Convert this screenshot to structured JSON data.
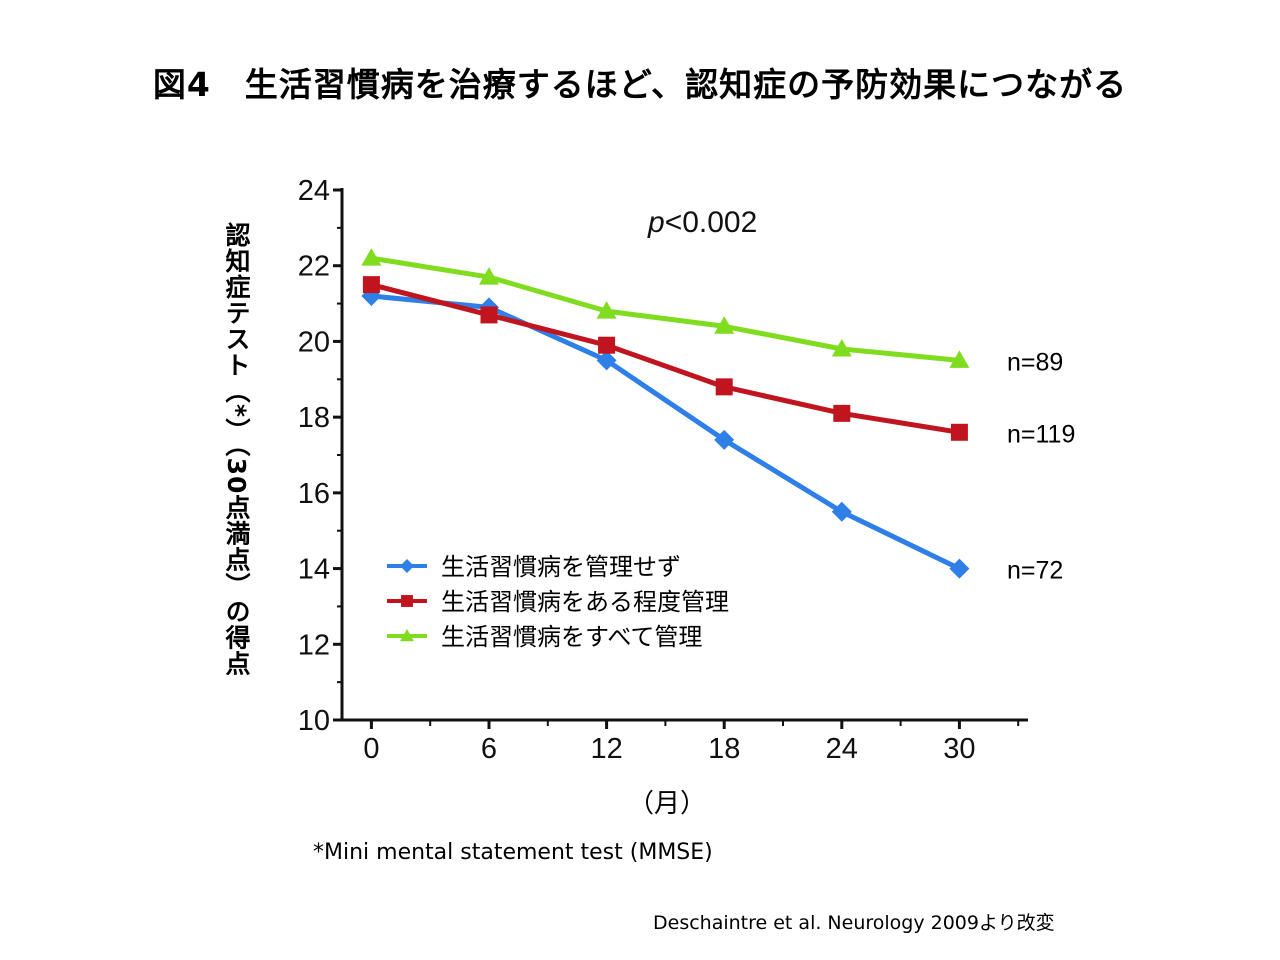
{
  "title": "図4　生活習慣病を治療するほど、認知症の予防効果につながる",
  "footnote": "*Mini mental statement test (MMSE)",
  "source": "Deschaintre et al. Neurology 2009より改変",
  "chart_data": {
    "type": "line",
    "title": "",
    "xlabel": "（月）",
    "ylabel": "認知症テスト（*）（30点満点）の得点",
    "x": [
      0,
      6,
      12,
      18,
      24,
      30
    ],
    "x_tick_labels": [
      "0",
      "6",
      "12",
      "18",
      "24",
      "30"
    ],
    "y_tick_labels": [
      "10",
      "12",
      "14",
      "16",
      "18",
      "20",
      "22",
      "24"
    ],
    "xlim": [
      -1.5,
      33.5
    ],
    "ylim": [
      10,
      24
    ],
    "grid": false,
    "legend_position": "lower-left",
    "annotation": "p<0.002",
    "series": [
      {
        "name": "生活習慣病を管理せず",
        "color": "#2f7fe8",
        "marker": "diamond",
        "values": [
          21.2,
          20.9,
          19.5,
          17.4,
          15.5,
          14.0
        ],
        "n_label": "n=72"
      },
      {
        "name": "生活習慣病をある程度管理",
        "color": "#c0141e",
        "marker": "square",
        "values": [
          21.5,
          20.7,
          19.9,
          18.8,
          18.1,
          17.6
        ],
        "n_label": "n=119"
      },
      {
        "name": "生活習慣病をすべて管理",
        "color": "#7fdc1e",
        "marker": "triangle",
        "values": [
          22.2,
          21.7,
          20.8,
          20.4,
          19.8,
          19.5
        ],
        "n_label": "n=89"
      }
    ]
  }
}
